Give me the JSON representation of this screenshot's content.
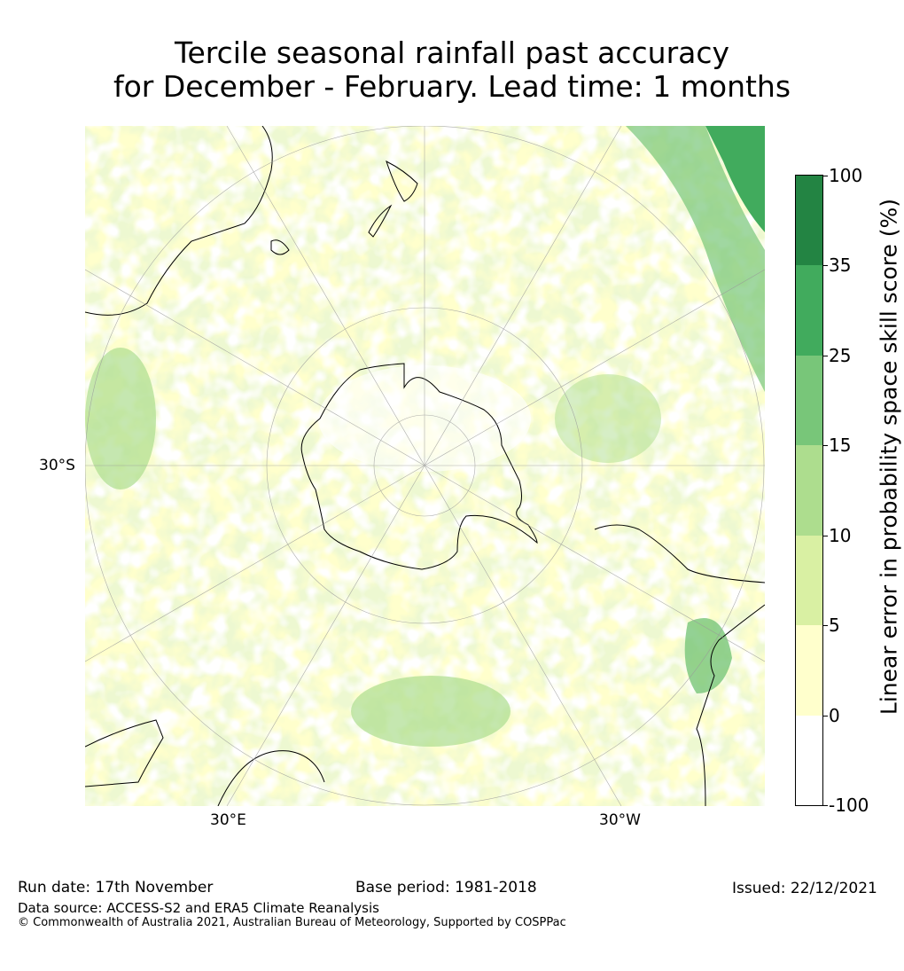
{
  "title": {
    "line1": "Tercile seasonal rainfall past accuracy",
    "line2": "for December - February. Lead time: 1 months"
  },
  "map": {
    "projection": "south-polar-stereographic",
    "lat_label": "30°S",
    "lon_label_left": "30°E",
    "lon_label_right": "30°W",
    "land_outline_color": "#000000",
    "grid_color": "#999999"
  },
  "colorbar": {
    "label": "Linear error in probability space skill score (%)",
    "ticks": [
      "-100",
      "0",
      "5",
      "10",
      "15",
      "25",
      "35",
      "100"
    ],
    "bins": [
      {
        "from": -100,
        "to": 0,
        "color": "#ffffff"
      },
      {
        "from": 0,
        "to": 5,
        "color": "#ffffcc"
      },
      {
        "from": 5,
        "to": 10,
        "color": "#d9f0a3"
      },
      {
        "from": 10,
        "to": 15,
        "color": "#addd8e"
      },
      {
        "from": 15,
        "to": 25,
        "color": "#78c679"
      },
      {
        "from": 25,
        "to": 35,
        "color": "#41ab5d"
      },
      {
        "from": 35,
        "to": 100,
        "color": "#238443"
      }
    ]
  },
  "footer": {
    "run_date": "Run date: 17th November",
    "base_period": "Base period: 1981-2018",
    "issued": "Issued: 22/12/2021",
    "data_source": "Data source: ACCESS-S2 and ERA5 Climate Reanalysis",
    "copyright": "© Commonwealth of Australia 2021, Australian Bureau of Meteorology, Supported by COSPPac"
  }
}
